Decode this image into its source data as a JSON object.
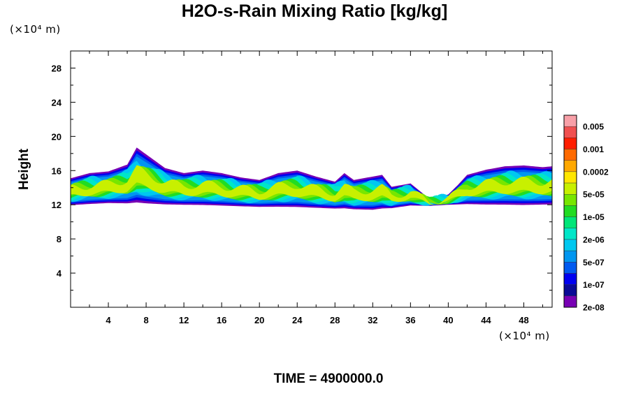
{
  "chart_data": {
    "type": "heatmap",
    "title": "H2O-s-Rain Mixing Ratio [kg/kg]",
    "ylabel": "Height",
    "xlabel": "",
    "x_unit": "(×10⁴ m)",
    "y_unit": "(×10⁴ m)",
    "xlim": [
      0,
      51
    ],
    "ylim": [
      0,
      30
    ],
    "x_ticks": [
      4,
      8,
      12,
      16,
      20,
      24,
      28,
      32,
      36,
      40,
      44,
      48
    ],
    "y_ticks": [
      4,
      8,
      12,
      16,
      20,
      24,
      28
    ],
    "colorbar": {
      "labels": [
        "0.005",
        "0.001",
        "0.0002",
        "5e-05",
        "1e-05",
        "2e-06",
        "5e-07",
        "1e-07",
        "2e-08"
      ],
      "colors": [
        "#f8a0a8",
        "#f05050",
        "#ff1e00",
        "#ff6a00",
        "#ffa800",
        "#ffe600",
        "#c8f000",
        "#78e600",
        "#22dc22",
        "#00e678",
        "#00e6c8",
        "#00c8f0",
        "#0096f0",
        "#005af0",
        "#0000f0",
        "#0a0a96",
        "#7800b4"
      ]
    },
    "layer": {
      "top_profile_x": [
        0,
        2,
        4,
        6,
        7,
        8,
        10,
        12,
        14,
        16,
        18,
        20,
        22,
        24,
        26,
        28,
        29,
        30,
        32,
        33,
        34,
        36,
        38,
        40,
        41,
        42,
        44,
        46,
        48,
        50,
        51
      ],
      "top_profile_height": [
        15.4,
        16.0,
        16.2,
        17.0,
        19.0,
        18.2,
        16.6,
        16.0,
        16.3,
        16.0,
        15.5,
        15.2,
        16.0,
        16.3,
        15.6,
        15.0,
        16.0,
        15.2,
        15.6,
        15.8,
        14.4,
        14.8,
        13.0,
        13.5,
        14.6,
        15.8,
        16.4,
        16.8,
        16.9,
        16.7,
        16.8
      ],
      "bottom_profile_x": [
        0,
        4,
        8,
        12,
        16,
        20,
        24,
        28,
        32,
        36,
        40,
        44,
        48,
        51
      ],
      "bottom_profile_height": [
        12.0,
        12.2,
        12.0,
        12.0,
        11.9,
        11.8,
        11.7,
        11.6,
        11.4,
        12.0,
        12.2,
        12.0,
        11.9,
        12.0
      ]
    }
  },
  "footer": {
    "time_label": "TIME = 4900000.0"
  }
}
